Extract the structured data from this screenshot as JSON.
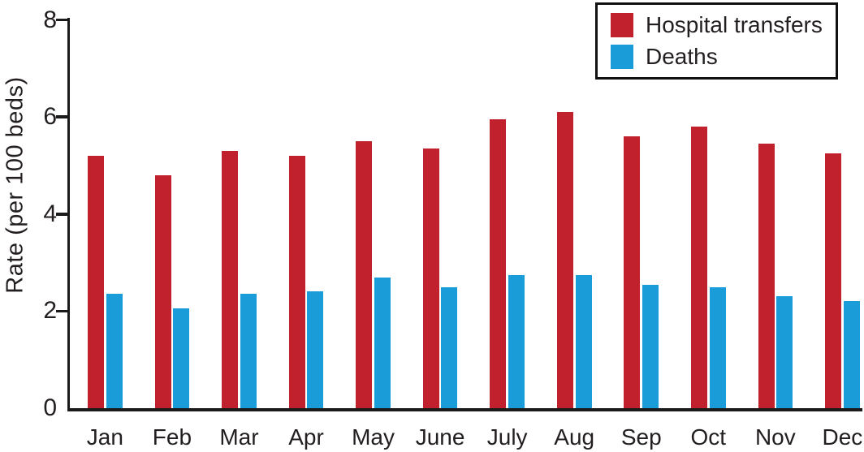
{
  "chart_data": {
    "type": "bar",
    "title": "",
    "ylabel": "Rate (per 100 beds)",
    "xlabel": "",
    "categories": [
      "Jan",
      "Feb",
      "Mar",
      "Apr",
      "May",
      "June",
      "July",
      "Aug",
      "Sep",
      "Oct",
      "Nov",
      "Dec"
    ],
    "series": [
      {
        "name": "Hospital transfers",
        "color": "#c1202d",
        "values": [
          5.2,
          4.8,
          5.3,
          5.2,
          5.5,
          5.35,
          5.95,
          6.1,
          5.6,
          5.8,
          5.45,
          5.25
        ]
      },
      {
        "name": "Deaths",
        "color": "#199cd8",
        "values": [
          2.35,
          2.05,
          2.35,
          2.4,
          2.7,
          2.5,
          2.75,
          2.75,
          2.55,
          2.5,
          2.3,
          2.2
        ]
      }
    ],
    "yticks": [
      0,
      2,
      4,
      6,
      8
    ],
    "ylim": [
      0,
      8
    ],
    "grid": false,
    "legend_position": "top-right",
    "axis_color": "#1a1a1a",
    "text_color": "#231f20"
  }
}
